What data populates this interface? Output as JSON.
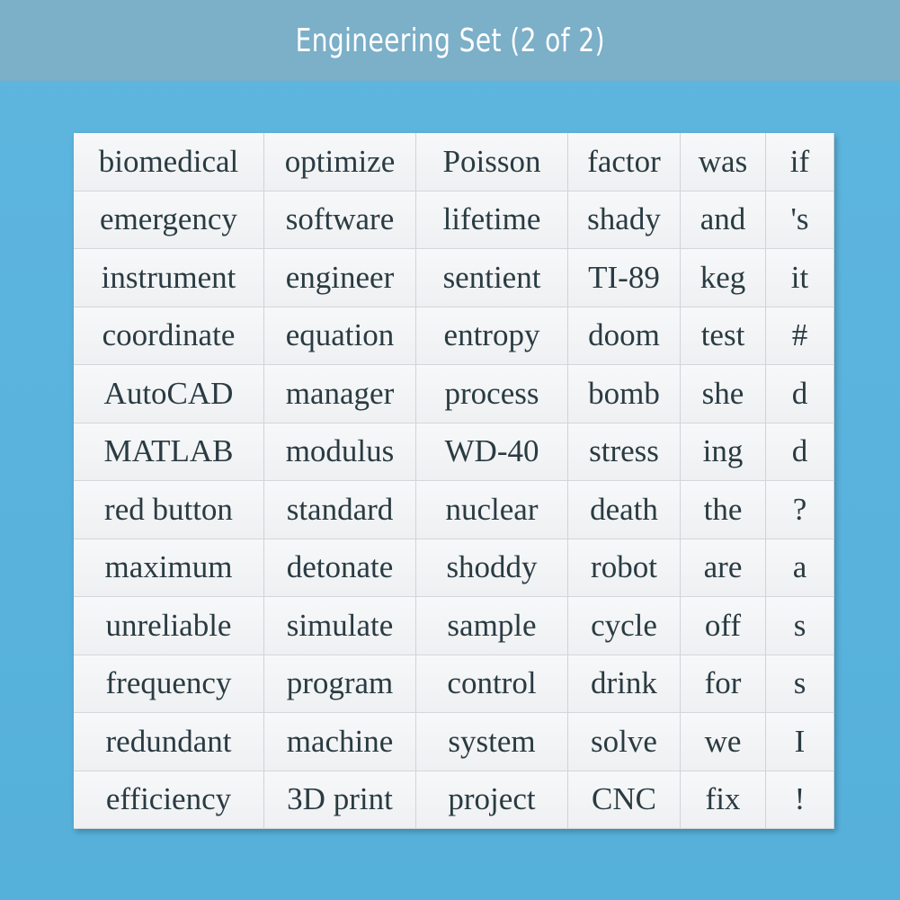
{
  "header": {
    "title": "Engineering Set (2 of 2)"
  },
  "table": {
    "rows": [
      [
        "biomedical",
        "optimize",
        "Poisson",
        "factor",
        "was",
        "if"
      ],
      [
        "emergency",
        "software",
        "lifetime",
        "shady",
        "and",
        "'s"
      ],
      [
        "instrument",
        "engineer",
        "sentient",
        "TI-89",
        "keg",
        "it"
      ],
      [
        "coordinate",
        "equation",
        "entropy",
        "doom",
        "test",
        "#"
      ],
      [
        "AutoCAD",
        "manager",
        "process",
        "bomb",
        "she",
        "d"
      ],
      [
        "MATLAB",
        "modulus",
        "WD-40",
        "stress",
        "ing",
        "d"
      ],
      [
        "red button",
        "standard",
        "nuclear",
        "death",
        "the",
        "?"
      ],
      [
        "maximum",
        "detonate",
        "shoddy",
        "robot",
        "are",
        "a"
      ],
      [
        "unreliable",
        "simulate",
        "sample",
        "cycle",
        "off",
        "s"
      ],
      [
        "frequency",
        "program",
        "control",
        "drink",
        "for",
        "s"
      ],
      [
        "redundant",
        "machine",
        "system",
        "solve",
        "we",
        "I"
      ],
      [
        "efficiency",
        "3D print",
        "project",
        "CNC",
        "fix",
        "!"
      ]
    ]
  }
}
